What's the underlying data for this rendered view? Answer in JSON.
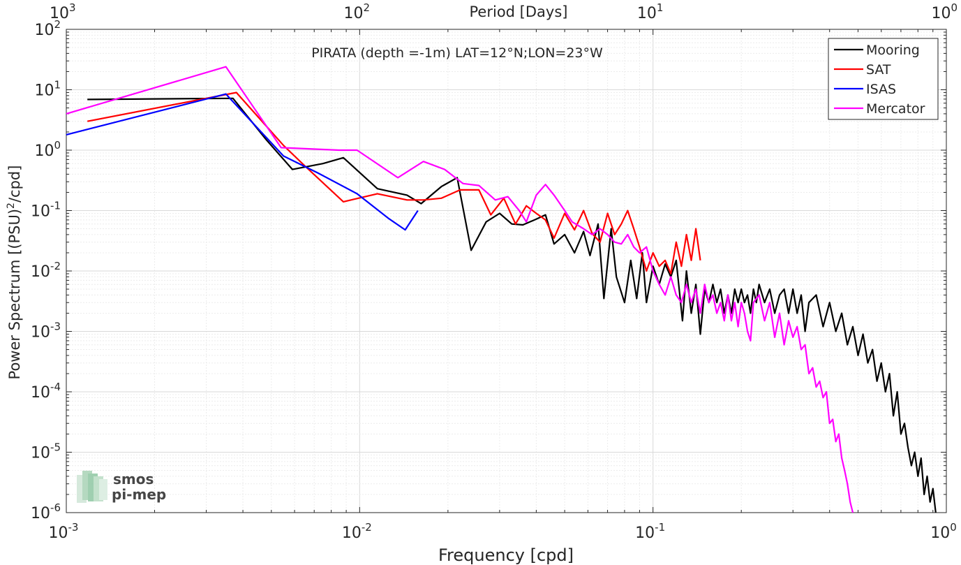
{
  "chart_data": {
    "type": "line",
    "title": "PIRATA (depth =-1m) LAT=12°N;LON=23°W",
    "xlabel": "Frequency [cpd]",
    "ylabel": "Power Spectrum [(PSU)",
    "ylabel_sup": "2",
    "ylabel_tail": "/cpd]",
    "top_xlabel": "Period [Days]",
    "xscale": "log",
    "yscale": "log",
    "xlim": [
      0.001,
      1
    ],
    "ylim": [
      1e-06,
      100
    ],
    "grid": true,
    "legend_position": "top-right",
    "x_ticks": [
      {
        "v": 0.001,
        "base": "10",
        "exp": "-3"
      },
      {
        "v": 0.01,
        "base": "10",
        "exp": "-2"
      },
      {
        "v": 0.1,
        "base": "10",
        "exp": "-1"
      },
      {
        "v": 1,
        "base": "10",
        "exp": "0"
      }
    ],
    "y_ticks": [
      {
        "v": 100,
        "base": "10",
        "exp": "2"
      },
      {
        "v": 10,
        "base": "10",
        "exp": "1"
      },
      {
        "v": 1,
        "base": "10",
        "exp": "0"
      },
      {
        "v": 0.1,
        "base": "10",
        "exp": "-1"
      },
      {
        "v": 0.01,
        "base": "10",
        "exp": "-2"
      },
      {
        "v": 0.001,
        "base": "10",
        "exp": "-3"
      },
      {
        "v": 0.0001,
        "base": "10",
        "exp": "-4"
      },
      {
        "v": 1e-05,
        "base": "10",
        "exp": "-5"
      },
      {
        "v": 1e-06,
        "base": "10",
        "exp": "-6"
      }
    ],
    "top_ticks": [
      {
        "v": 0.001,
        "base": "10",
        "exp": "3"
      },
      {
        "v": 0.01,
        "base": "10",
        "exp": "2"
      },
      {
        "v": 0.1,
        "base": "10",
        "exp": "1"
      },
      {
        "v": 1,
        "base": "10",
        "exp": "0"
      }
    ],
    "series": [
      {
        "name": "Mooring",
        "color": "#000000",
        "points": [
          [
            0.00118,
            6.9
          ],
          [
            0.0037,
            7.2
          ],
          [
            0.0048,
            1.5
          ],
          [
            0.0059,
            0.48
          ],
          [
            0.0075,
            0.6
          ],
          [
            0.0088,
            0.75
          ],
          [
            0.0115,
            0.23
          ],
          [
            0.0145,
            0.18
          ],
          [
            0.0162,
            0.13
          ],
          [
            0.019,
            0.25
          ],
          [
            0.0215,
            0.35
          ],
          [
            0.024,
            0.022
          ],
          [
            0.027,
            0.065
          ],
          [
            0.03,
            0.09
          ],
          [
            0.033,
            0.06
          ],
          [
            0.036,
            0.058
          ],
          [
            0.04,
            0.072
          ],
          [
            0.043,
            0.085
          ],
          [
            0.046,
            0.028
          ],
          [
            0.05,
            0.04
          ],
          [
            0.054,
            0.02
          ],
          [
            0.058,
            0.045
          ],
          [
            0.061,
            0.018
          ],
          [
            0.065,
            0.06
          ],
          [
            0.068,
            0.0035
          ],
          [
            0.072,
            0.05
          ],
          [
            0.075,
            0.008
          ],
          [
            0.08,
            0.003
          ],
          [
            0.084,
            0.015
          ],
          [
            0.088,
            0.0035
          ],
          [
            0.092,
            0.02
          ],
          [
            0.095,
            0.003
          ],
          [
            0.1,
            0.012
          ],
          [
            0.105,
            0.006
          ],
          [
            0.11,
            0.013
          ],
          [
            0.115,
            0.008
          ],
          [
            0.12,
            0.015
          ],
          [
            0.126,
            0.0015
          ],
          [
            0.13,
            0.01
          ],
          [
            0.135,
            0.002
          ],
          [
            0.14,
            0.006
          ],
          [
            0.145,
            0.0009
          ],
          [
            0.15,
            0.005
          ],
          [
            0.155,
            0.003
          ],
          [
            0.16,
            0.006
          ],
          [
            0.165,
            0.003
          ],
          [
            0.17,
            0.005
          ],
          [
            0.175,
            0.002
          ],
          [
            0.18,
            0.004
          ],
          [
            0.185,
            0.002
          ],
          [
            0.19,
            0.005
          ],
          [
            0.195,
            0.003
          ],
          [
            0.2,
            0.005
          ],
          [
            0.205,
            0.003
          ],
          [
            0.21,
            0.004
          ],
          [
            0.215,
            0.002
          ],
          [
            0.22,
            0.005
          ],
          [
            0.225,
            0.003
          ],
          [
            0.23,
            0.006
          ],
          [
            0.24,
            0.003
          ],
          [
            0.25,
            0.005
          ],
          [
            0.26,
            0.002
          ],
          [
            0.27,
            0.004
          ],
          [
            0.28,
            0.005
          ],
          [
            0.29,
            0.002
          ],
          [
            0.3,
            0.005
          ],
          [
            0.31,
            0.002
          ],
          [
            0.32,
            0.004
          ],
          [
            0.33,
            0.001
          ],
          [
            0.34,
            0.003
          ],
          [
            0.36,
            0.004
          ],
          [
            0.38,
            0.0012
          ],
          [
            0.4,
            0.003
          ],
          [
            0.42,
            0.001
          ],
          [
            0.44,
            0.002
          ],
          [
            0.46,
            0.0006
          ],
          [
            0.48,
            0.0012
          ],
          [
            0.5,
            0.0004
          ],
          [
            0.52,
            0.0009
          ],
          [
            0.54,
            0.0003
          ],
          [
            0.56,
            0.0005
          ],
          [
            0.58,
            0.00015
          ],
          [
            0.6,
            0.0003
          ],
          [
            0.62,
            0.0001
          ],
          [
            0.64,
            0.0002
          ],
          [
            0.66,
            4e-05
          ],
          [
            0.68,
            0.0001
          ],
          [
            0.7,
            2e-05
          ],
          [
            0.72,
            3e-05
          ],
          [
            0.74,
            1.2e-05
          ],
          [
            0.76,
            6e-06
          ],
          [
            0.78,
            1e-05
          ],
          [
            0.8,
            4e-06
          ],
          [
            0.82,
            8e-06
          ],
          [
            0.84,
            2e-06
          ],
          [
            0.86,
            4e-06
          ],
          [
            0.88,
            1.5e-06
          ],
          [
            0.9,
            2.5e-06
          ],
          [
            0.92,
            1e-06
          ]
        ]
      },
      {
        "name": "SAT",
        "color": "#ff0000",
        "points": [
          [
            0.00118,
            3.0
          ],
          [
            0.0038,
            9.0
          ],
          [
            0.0055,
            1.2
          ],
          [
            0.0065,
            0.55
          ],
          [
            0.0088,
            0.14
          ],
          [
            0.0115,
            0.19
          ],
          [
            0.0145,
            0.15
          ],
          [
            0.0165,
            0.15
          ],
          [
            0.019,
            0.16
          ],
          [
            0.022,
            0.22
          ],
          [
            0.0255,
            0.22
          ],
          [
            0.028,
            0.085
          ],
          [
            0.031,
            0.16
          ],
          [
            0.034,
            0.06
          ],
          [
            0.037,
            0.12
          ],
          [
            0.04,
            0.09
          ],
          [
            0.043,
            0.07
          ],
          [
            0.046,
            0.035
          ],
          [
            0.05,
            0.09
          ],
          [
            0.054,
            0.048
          ],
          [
            0.058,
            0.1
          ],
          [
            0.062,
            0.042
          ],
          [
            0.066,
            0.03
          ],
          [
            0.07,
            0.09
          ],
          [
            0.074,
            0.04
          ],
          [
            0.078,
            0.06
          ],
          [
            0.082,
            0.1
          ],
          [
            0.086,
            0.05
          ],
          [
            0.09,
            0.025
          ],
          [
            0.095,
            0.01
          ],
          [
            0.1,
            0.02
          ],
          [
            0.105,
            0.012
          ],
          [
            0.11,
            0.015
          ],
          [
            0.115,
            0.009
          ],
          [
            0.12,
            0.03
          ],
          [
            0.125,
            0.012
          ],
          [
            0.13,
            0.04
          ],
          [
            0.135,
            0.015
          ],
          [
            0.14,
            0.05
          ],
          [
            0.145,
            0.015
          ]
        ]
      },
      {
        "name": "ISAS",
        "color": "#0000ff",
        "points": [
          [
            0.001,
            1.8
          ],
          [
            0.0035,
            8.5
          ],
          [
            0.0055,
            0.8
          ],
          [
            0.0072,
            0.42
          ],
          [
            0.0098,
            0.19
          ],
          [
            0.0125,
            0.075
          ],
          [
            0.0143,
            0.048
          ],
          [
            0.0158,
            0.1
          ]
        ]
      },
      {
        "name": "Mercator",
        "color": "#ff00ff",
        "points": [
          [
            0.001,
            4.0
          ],
          [
            0.0035,
            24
          ],
          [
            0.0054,
            1.1
          ],
          [
            0.0085,
            1.0
          ],
          [
            0.0098,
            1.0
          ],
          [
            0.0135,
            0.35
          ],
          [
            0.0165,
            0.65
          ],
          [
            0.0195,
            0.48
          ],
          [
            0.0225,
            0.28
          ],
          [
            0.0255,
            0.26
          ],
          [
            0.029,
            0.15
          ],
          [
            0.032,
            0.17
          ],
          [
            0.035,
            0.1
          ],
          [
            0.037,
            0.065
          ],
          [
            0.04,
            0.18
          ],
          [
            0.043,
            0.27
          ],
          [
            0.046,
            0.18
          ],
          [
            0.05,
            0.1
          ],
          [
            0.053,
            0.065
          ],
          [
            0.058,
            0.05
          ],
          [
            0.062,
            0.04
          ],
          [
            0.066,
            0.05
          ],
          [
            0.07,
            0.04
          ],
          [
            0.074,
            0.03
          ],
          [
            0.078,
            0.028
          ],
          [
            0.082,
            0.04
          ],
          [
            0.086,
            0.025
          ],
          [
            0.09,
            0.02
          ],
          [
            0.095,
            0.025
          ],
          [
            0.1,
            0.01
          ],
          [
            0.105,
            0.006
          ],
          [
            0.11,
            0.004
          ],
          [
            0.115,
            0.008
          ],
          [
            0.12,
            0.004
          ],
          [
            0.125,
            0.003
          ],
          [
            0.13,
            0.006
          ],
          [
            0.135,
            0.003
          ],
          [
            0.14,
            0.005
          ],
          [
            0.145,
            0.002
          ],
          [
            0.15,
            0.006
          ],
          [
            0.155,
            0.003
          ],
          [
            0.16,
            0.004
          ],
          [
            0.165,
            0.002
          ],
          [
            0.17,
            0.003
          ],
          [
            0.175,
            0.0015
          ],
          [
            0.18,
            0.004
          ],
          [
            0.185,
            0.0015
          ],
          [
            0.19,
            0.003
          ],
          [
            0.195,
            0.0012
          ],
          [
            0.2,
            0.003
          ],
          [
            0.205,
            0.002
          ],
          [
            0.21,
            0.001
          ],
          [
            0.215,
            0.0007
          ],
          [
            0.22,
            0.003
          ],
          [
            0.23,
            0.004
          ],
          [
            0.24,
            0.0015
          ],
          [
            0.25,
            0.003
          ],
          [
            0.26,
            0.0008
          ],
          [
            0.27,
            0.002
          ],
          [
            0.28,
            0.0006
          ],
          [
            0.29,
            0.0015
          ],
          [
            0.3,
            0.0008
          ],
          [
            0.31,
            0.0012
          ],
          [
            0.32,
            0.0005
          ],
          [
            0.33,
            0.0006
          ],
          [
            0.34,
            0.0002
          ],
          [
            0.35,
            0.00025
          ],
          [
            0.36,
            0.00012
          ],
          [
            0.37,
            0.00015
          ],
          [
            0.38,
            8e-05
          ],
          [
            0.39,
            0.0001
          ],
          [
            0.4,
            3e-05
          ],
          [
            0.41,
            3.5e-05
          ],
          [
            0.42,
            1.5e-05
          ],
          [
            0.43,
            2e-05
          ],
          [
            0.44,
            8e-06
          ],
          [
            0.45,
            5e-06
          ],
          [
            0.46,
            3e-06
          ],
          [
            0.47,
            1.5e-06
          ],
          [
            0.48,
            1e-06
          ]
        ]
      }
    ]
  },
  "logo": {
    "line1": "smos",
    "line2": "pi-mep",
    "color": "#7bbf9a"
  }
}
